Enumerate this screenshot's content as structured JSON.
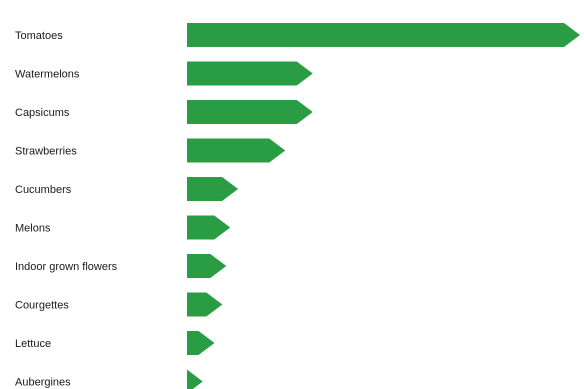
{
  "chart_data": {
    "type": "bar",
    "orientation": "horizontal",
    "bar_shape": "arrow",
    "title": "",
    "xlabel": "",
    "ylabel": "",
    "grid": false,
    "legend": "none",
    "color": "#2a9d44",
    "xlim": [
      0,
      100
    ],
    "categories": [
      "Tomatoes",
      "Watermelons",
      "Capsicums",
      "Strawberries",
      "Cucumbers",
      "Melons",
      "Indoor grown flowers",
      "Courgettes",
      "Lettuce",
      "Aubergines"
    ],
    "values": [
      100,
      32,
      32,
      25,
      13,
      11,
      10,
      9,
      7,
      4
    ]
  }
}
